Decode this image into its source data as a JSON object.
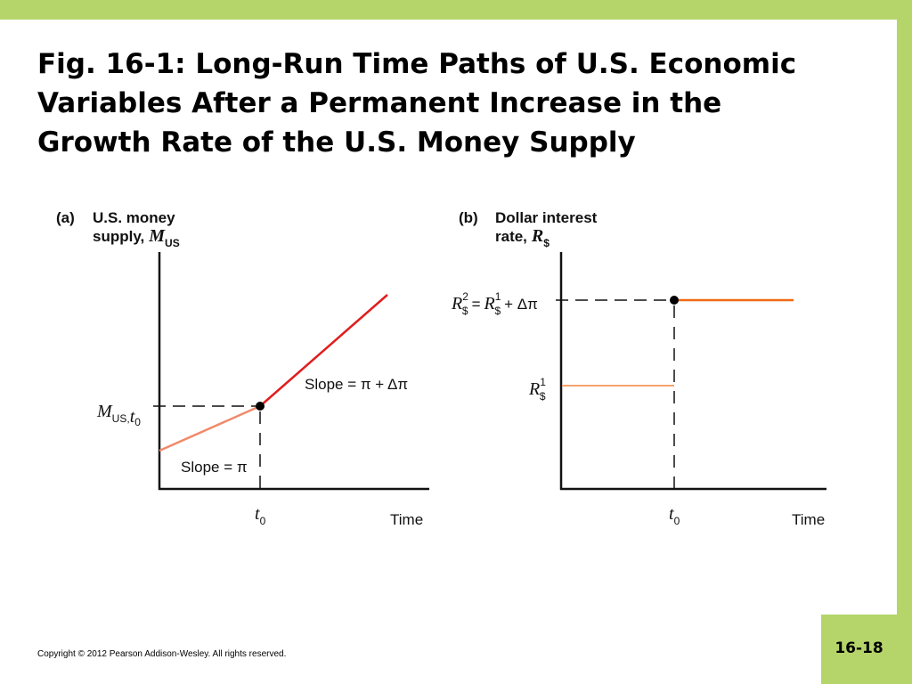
{
  "slide": {
    "title_lines": [
      "Fig. 16-1: Long-Run Time Paths of U.S. Economic",
      "Variables After a Permanent Increase in the",
      "Growth Rate of the U.S. Money Supply"
    ],
    "copyright": "Copyright © 2012 Pearson Addison-Wesley. All rights reserved.",
    "page_number": "16-18",
    "frame_color": "#b5d56a"
  },
  "panel_a": {
    "tag": "(a)",
    "ylabel_line1": "U.S. money",
    "ylabel_line2": "supply,",
    "ylabel_symbol": "M",
    "ylabel_subscript": "US",
    "y_marker_symbol": "M",
    "y_marker_subscript": "US,",
    "y_marker_subscript_var": "t",
    "y_marker_subscript_var_sub": "0",
    "x_marker_symbol": "t",
    "x_marker_subscript": "0",
    "xlabel": "Time",
    "slope_before": "Slope = π",
    "slope_after": "Slope = π + Δπ",
    "before_color": "#f08a6a",
    "after_color": "#e01e1e"
  },
  "panel_b": {
    "tag": "(b)",
    "ylabel_line1": "Dollar interest",
    "ylabel_line2": "rate,",
    "ylabel_symbol": "R",
    "ylabel_subscript": "$",
    "r2_symbol": "R",
    "r2_sup": "2",
    "r2_sub": "$",
    "r2_eq": "=",
    "r1_symbol": "R",
    "r1_sup": "1",
    "r1_sub": "$",
    "r2_tail": "+ Δπ",
    "r1_label_symbol": "R",
    "r1_label_sup": "1",
    "r1_label_sub": "$",
    "x_marker_symbol": "t",
    "x_marker_subscript": "0",
    "xlabel": "Time",
    "before_color": "#f5a36e",
    "after_color": "#f06a14"
  }
}
